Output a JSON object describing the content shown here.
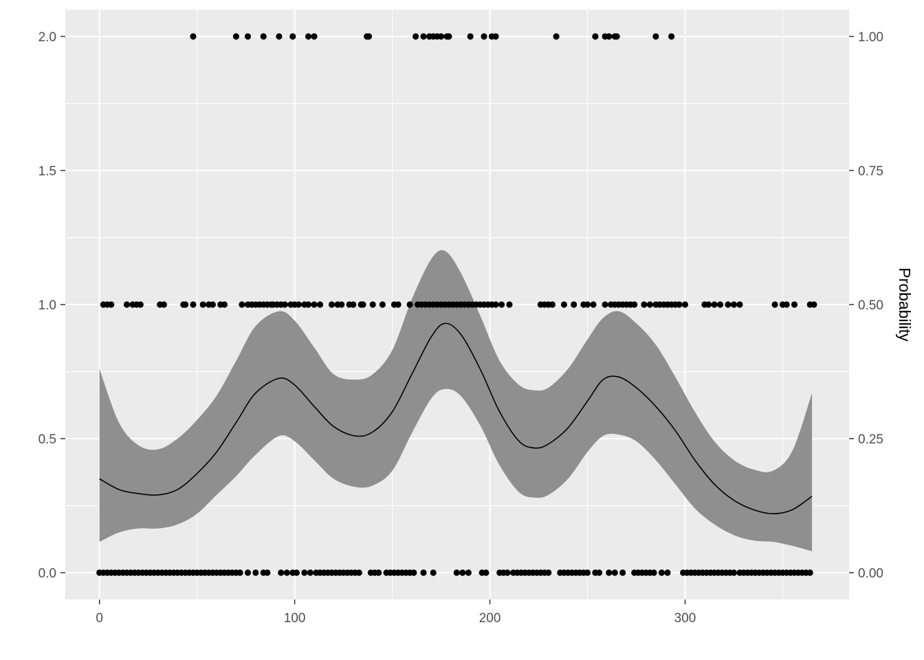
{
  "chart_data": {
    "type": "scatter",
    "title": "",
    "xlabel": "",
    "ylabel": "",
    "y2label": "Probability",
    "xlim": [
      -17.5,
      384
    ],
    "ylim": [
      -0.1,
      2.1
    ],
    "y2lim": [
      -0.05,
      1.05
    ],
    "grid": true,
    "legend": "none",
    "x_ticks": [
      0,
      100,
      200,
      300
    ],
    "x_tick_labels": [
      "0",
      "100",
      "200",
      "300"
    ],
    "y_ticks": [
      0,
      0.5,
      1,
      1.5,
      2
    ],
    "y_tick_labels": [
      "0.0",
      "0.5",
      "1.0",
      "1.5",
      "2.0"
    ],
    "y2_ticks": [
      0,
      0.25,
      0.5,
      0.75,
      1
    ],
    "y2_tick_labels": [
      "0.00",
      "0.25",
      "0.50",
      "0.75",
      "1.00"
    ],
    "colors": {
      "panel": "#ebebeb",
      "grid": "#ffffff",
      "points": "#000000",
      "band": "#8f8f8f",
      "line": "#000000",
      "tick_text": "#4d4d4d"
    },
    "series": [
      {
        "type": "scatter",
        "y": 2,
        "x": [
          48,
          70,
          76,
          84,
          92,
          99,
          107,
          110,
          137,
          138,
          162,
          166,
          169,
          171,
          173,
          175,
          178,
          179,
          190,
          197,
          201,
          203,
          234,
          254,
          259,
          261,
          264,
          265,
          285,
          293
        ]
      },
      {
        "type": "scatter",
        "y": 1,
        "x": [
          2,
          4,
          6,
          14,
          17,
          19,
          21,
          31,
          33,
          43,
          44,
          48,
          53,
          56,
          58,
          62,
          64,
          73,
          76,
          78,
          80,
          82,
          84,
          86,
          88,
          89,
          91,
          93,
          95,
          98,
          100,
          102,
          105,
          107,
          110,
          113,
          119,
          122,
          124,
          128,
          130,
          134,
          135,
          140,
          145,
          151,
          153,
          159,
          163,
          165,
          167,
          169,
          171,
          173,
          175,
          177,
          179,
          181,
          183,
          185,
          187,
          189,
          191,
          193,
          195,
          197,
          199,
          201,
          203,
          206,
          210,
          226,
          228,
          230,
          232,
          238,
          243,
          248,
          250,
          253,
          259,
          262,
          264,
          266,
          268,
          270,
          272,
          274,
          279,
          282,
          285,
          287,
          289,
          291,
          293,
          295,
          297,
          300,
          310,
          312,
          315,
          318,
          322,
          325,
          328,
          346,
          350,
          352,
          356,
          364,
          366
        ]
      },
      {
        "type": "scatter",
        "y": 0,
        "x": [
          0,
          2,
          4,
          6,
          8,
          10,
          12,
          14,
          16,
          18,
          20,
          22,
          24,
          26,
          28,
          30,
          32,
          34,
          36,
          38,
          40,
          42,
          44,
          46,
          48,
          50,
          52,
          54,
          56,
          58,
          60,
          62,
          64,
          66,
          68,
          70,
          72,
          76,
          80,
          84,
          86,
          93,
          96,
          99,
          101,
          105,
          108,
          111,
          113,
          115,
          117,
          119,
          121,
          123,
          125,
          127,
          129,
          131,
          133,
          139,
          141,
          143,
          147,
          149,
          151,
          153,
          155,
          157,
          159,
          161,
          166,
          171,
          183,
          186,
          189,
          196,
          198,
          205,
          207,
          209,
          212,
          214,
          216,
          218,
          220,
          222,
          224,
          226,
          228,
          230,
          236,
          238,
          240,
          242,
          244,
          246,
          248,
          250,
          254,
          256,
          261,
          264,
          268,
          274,
          276,
          278,
          280,
          282,
          284,
          288,
          291,
          299,
          301,
          303,
          305,
          307,
          309,
          311,
          313,
          315,
          317,
          319,
          321,
          323,
          325,
          328,
          330,
          332,
          334,
          336,
          338,
          340,
          342,
          344,
          346,
          348,
          350,
          352,
          354,
          356,
          358,
          360,
          362,
          364
        ]
      },
      {
        "type": "line",
        "x": [
          0,
          10,
          20,
          30,
          40,
          50,
          60,
          70,
          80,
          92,
          100,
          110,
          120,
          131,
          140,
          150,
          160,
          170,
          177,
          185,
          195,
          205,
          215,
          223,
          230,
          240,
          250,
          258,
          266,
          275,
          285,
          295,
          305,
          315,
          325,
          335,
          345,
          355,
          365
        ],
        "y": [
          0.35,
          0.31,
          0.295,
          0.29,
          0.31,
          0.37,
          0.45,
          0.56,
          0.67,
          0.725,
          0.7,
          0.62,
          0.545,
          0.51,
          0.525,
          0.6,
          0.74,
          0.88,
          0.93,
          0.89,
          0.76,
          0.6,
          0.49,
          0.465,
          0.48,
          0.54,
          0.64,
          0.72,
          0.73,
          0.69,
          0.62,
          0.53,
          0.42,
          0.33,
          0.27,
          0.235,
          0.22,
          0.235,
          0.285
        ],
        "lower": [
          0.115,
          0.15,
          0.165,
          0.165,
          0.18,
          0.22,
          0.29,
          0.36,
          0.44,
          0.51,
          0.49,
          0.42,
          0.35,
          0.32,
          0.325,
          0.38,
          0.52,
          0.65,
          0.685,
          0.66,
          0.55,
          0.4,
          0.3,
          0.28,
          0.29,
          0.35,
          0.45,
          0.51,
          0.515,
          0.49,
          0.42,
          0.33,
          0.24,
          0.18,
          0.14,
          0.12,
          0.115,
          0.1,
          0.08
        ],
        "upper": [
          0.76,
          0.56,
          0.475,
          0.46,
          0.5,
          0.57,
          0.66,
          0.79,
          0.92,
          0.975,
          0.94,
          0.84,
          0.74,
          0.72,
          0.74,
          0.83,
          1.02,
          1.17,
          1.2,
          1.12,
          0.96,
          0.79,
          0.7,
          0.68,
          0.69,
          0.76,
          0.87,
          0.95,
          0.975,
          0.93,
          0.85,
          0.73,
          0.6,
          0.49,
          0.42,
          0.385,
          0.38,
          0.455,
          0.67
        ]
      }
    ]
  }
}
